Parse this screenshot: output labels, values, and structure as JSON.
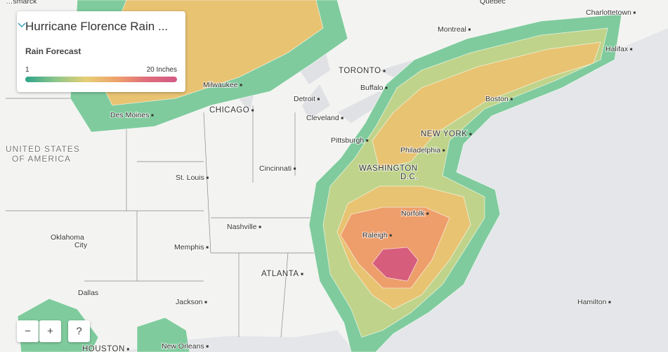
{
  "panel": {
    "title": "Hurricane Florence Rain ...",
    "subtitle": "Rain Forecast",
    "scale_min": "1",
    "scale_max": "20 Inches"
  },
  "controls": {
    "zoom_out": "−",
    "zoom_in": "+",
    "help": "?"
  },
  "places": [
    "…smarck",
    "Québec",
    "Charlottetown",
    "Montreal",
    "Halifax",
    "TORONTO",
    "Buffalo",
    "Milwaukee",
    "Detroit",
    "Boston",
    "CHICAGO",
    "Des Moines",
    "Cleveland",
    "NEW YORK",
    "Pittsburgh",
    "Philadelphia",
    "UNITED STATES",
    "OF AMERICA",
    "WASHINGTON",
    "D.C.",
    "Cincinnati",
    "St. Louis",
    "Norfolk",
    "Nashville",
    "Raleigh",
    "Oklahoma",
    "City",
    "Memphis",
    "ATLANTA",
    "Dallas",
    "Jackson",
    "Hamilton",
    "HOUSTON",
    "New Orleans"
  ]
}
